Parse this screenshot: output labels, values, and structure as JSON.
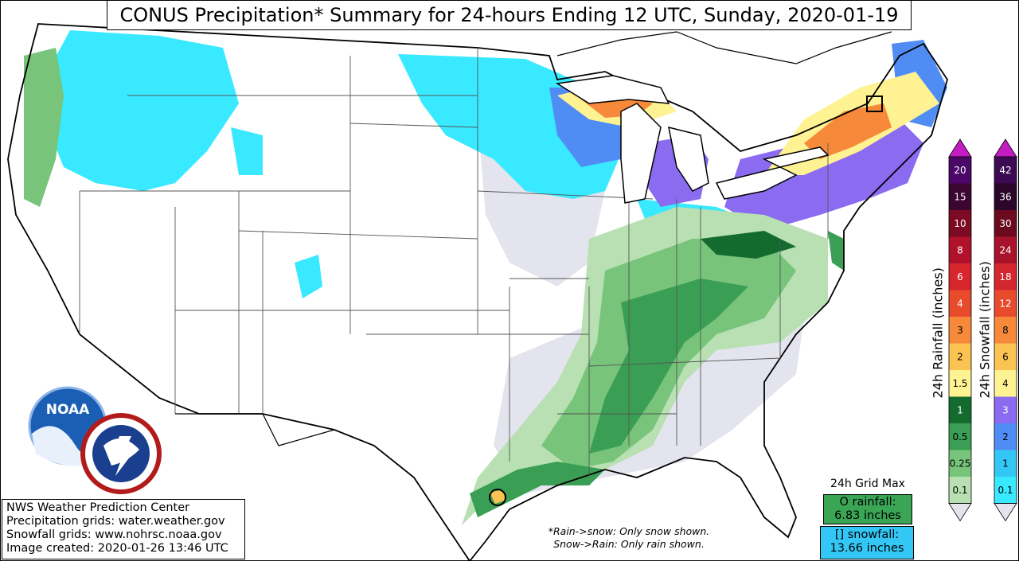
{
  "title": "CONUS Precipitation* Summary for 24-hours Ending 12 UTC, Sunday, 2020-01-19",
  "credits": [
    "NWS Weather Prediction Center",
    "Precipitation grids: water.weather.gov",
    "Snowfall grids: www.nohrsc.noaa.gov",
    "Image created: 2020-01-26 13:46 UTC"
  ],
  "note": {
    "line1": "*Rain->snow: Only snow shown.",
    "line2": "Snow->Rain: Only rain shown."
  },
  "grid_max": {
    "title": "24h Grid Max",
    "rain_line1": "O rainfall:",
    "rain_line2": "6.83 inches",
    "snow_line1": "[] snowfall:",
    "snow_line2": "13.66 inches"
  },
  "rain_legend": {
    "label": "24h Rainfall (inches)",
    "entries": [
      {
        "value": "20",
        "color": "#4b0869"
      },
      {
        "value": "15",
        "color": "#3b0632"
      },
      {
        "value": "10",
        "color": "#7b0a22"
      },
      {
        "value": "8",
        "color": "#b1122b"
      },
      {
        "value": "6",
        "color": "#d7262e"
      },
      {
        "value": "4",
        "color": "#e84b2c"
      },
      {
        "value": "3",
        "color": "#f68a3a"
      },
      {
        "value": "2",
        "color": "#fbc352"
      },
      {
        "value": "1.5",
        "color": "#fff293"
      },
      {
        "value": "1",
        "color": "#136b2e"
      },
      {
        "value": "0.5",
        "color": "#3a9f55"
      },
      {
        "value": "0.25",
        "color": "#77c47a"
      },
      {
        "value": "0.1",
        "color": "#b8e0b2"
      }
    ]
  },
  "snow_legend": {
    "label": "24h Snowfall (inches)",
    "entries": [
      {
        "value": "42",
        "color": "#3c0a52"
      },
      {
        "value": "36",
        "color": "#2a0628"
      },
      {
        "value": "30",
        "color": "#6b0a1e"
      },
      {
        "value": "24",
        "color": "#a8122a"
      },
      {
        "value": "18",
        "color": "#d4262e"
      },
      {
        "value": "12",
        "color": "#e84b2c"
      },
      {
        "value": "8",
        "color": "#f68a3a"
      },
      {
        "value": "6",
        "color": "#fbc352"
      },
      {
        "value": "4",
        "color": "#fff293"
      },
      {
        "value": "3",
        "color": "#8b6cf0"
      },
      {
        "value": "2",
        "color": "#4f8df5"
      },
      {
        "value": "1",
        "color": "#33c7f5"
      },
      {
        "value": "0.1",
        "color": "#38e9ff"
      }
    ]
  },
  "colors": {
    "trace": "#e4e4ee",
    "snow_light": "#38e9ff",
    "snow_mid": "#4f8df5",
    "snow_heavy": "#8b6cf0",
    "snow_orange": "#f68a3a",
    "snow_yellow": "#fff293",
    "rain_light": "#b8e0b2",
    "rain_mid": "#77c47a",
    "rain_heavy": "#3a9f55",
    "rain_dark": "#136b2e"
  },
  "icons": [
    "noaa-logo-icon",
    "nws-logo-icon"
  ],
  "logo_text": {
    "noaa": "NOAA"
  }
}
